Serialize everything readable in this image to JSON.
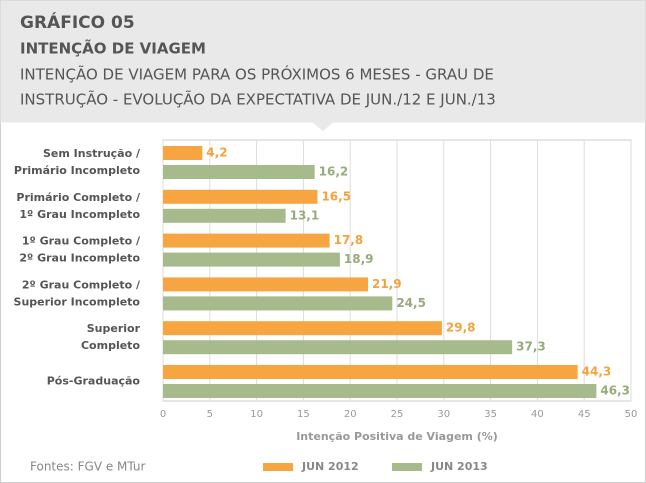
{
  "chart_data": {
    "type": "hbar",
    "title": "GRÁFICO 05",
    "subtitle": "INTENÇÃO DE VIAGEM",
    "description": [
      "INTENÇÃO DE VIAGEM PARA OS PRÓXIMOS 6 MESES - GRAU DE",
      "INSTRUÇÃO - EVOLUÇÃO DA EXPECTATIVA DE JUN./12 E JUN./13"
    ],
    "categories": [
      "Sem Instrução /\nPrimário Incompleto",
      "Primário Completo /\n1º Grau Incompleto",
      "1º Grau Completo /\n2º Grau Incompleto",
      "2º Grau Completo /\nSuperior Incompleto",
      "Superior\nCompleto",
      "Pós-Graduação"
    ],
    "series": [
      {
        "name": "JUN 2012",
        "color": "#f7a541",
        "label_color": "#f5a33e",
        "values": [
          4.2,
          16.5,
          17.8,
          21.9,
          29.8,
          44.3
        ],
        "value_labels": [
          "4,2",
          "16,5",
          "17,8",
          "21,9",
          "29,8",
          "44,3"
        ]
      },
      {
        "name": "JUN 2013",
        "color": "#a6ba8b",
        "label_color": "#97ab7c",
        "values": [
          16.2,
          13.1,
          18.9,
          24.5,
          37.3,
          46.3
        ],
        "value_labels": [
          "16,2",
          "13,1",
          "18,9",
          "24,5",
          "37,3",
          "46,3"
        ]
      }
    ],
    "xlabel": "Intenção Positiva de Viagem (%)",
    "xlim": [
      0,
      50
    ],
    "xticks": [
      0,
      5,
      10,
      15,
      20,
      25,
      30,
      35,
      40,
      45,
      50
    ],
    "grid": true,
    "source": "Fontes: FGV e MTur"
  }
}
